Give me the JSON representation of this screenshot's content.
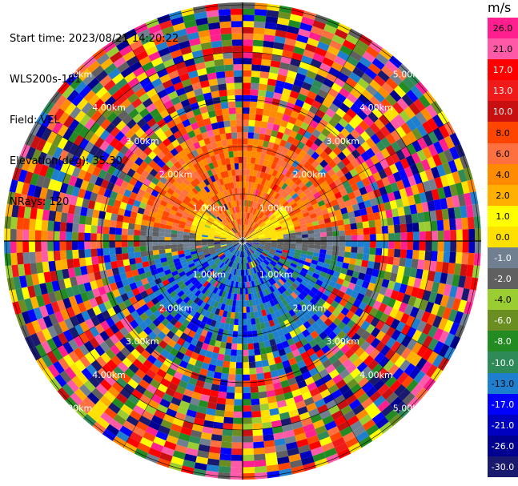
{
  "info": {
    "start_time": "Start time: 2023/08/21 14:20:22",
    "instrument": "WLS200s-181",
    "field": "Field: VEL",
    "elevation": "Elevation(deg): 35.30",
    "nrays": "NRays: 120"
  },
  "range_ring_labels": [
    "1.00km",
    "2.00km",
    "3.00km",
    "4.00km",
    "5.00km"
  ],
  "colorbar": {
    "unit": "m/s",
    "labels": [
      "26.0",
      "21.0",
      "17.0",
      "13.0",
      "10.0",
      "8.0",
      "6.0",
      "4.0",
      "2.0",
      "1.0",
      "0.0",
      "-1.0",
      "-2.0",
      "-4.0",
      "-6.0",
      "-8.0",
      "-10.0",
      "-13.0",
      "-17.0",
      "-21.0",
      "-26.0",
      "-30.0"
    ],
    "colors": [
      "#ff1f8f",
      "#ff5aa8",
      "#ff0000",
      "#f01a1a",
      "#c81010",
      "#ff4500",
      "#ff7040",
      "#ff8c00",
      "#ffb000",
      "#ffff00",
      "#ffe000",
      "#708090",
      "#606060",
      "#9acd32",
      "#6b8e23",
      "#228b22",
      "#2e8b57",
      "#1e7fcf",
      "#0000ff",
      "#0000c0",
      "#000090",
      "#191970"
    ]
  }
}
